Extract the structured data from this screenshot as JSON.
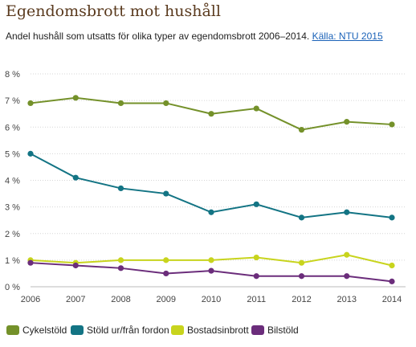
{
  "title": "Egendomsbrott mot hushåll",
  "subtitle": "Andel hushåll som utsatts för olika typer av egendomsbrott 2006–2014.",
  "source_link": "Källa: NTU 2015",
  "chart_data": {
    "type": "line",
    "x": [
      "2006",
      "2007",
      "2008",
      "2009",
      "2010",
      "2011",
      "2012",
      "2013",
      "2014"
    ],
    "yticks": [
      "0 %",
      "1 %",
      "2 %",
      "3 %",
      "4 %",
      "5 %",
      "6 %",
      "7 %",
      "8 %"
    ],
    "ylim": [
      0,
      8
    ],
    "grid": true,
    "legend_position": "bottom",
    "series": [
      {
        "name": "Cykelstöld",
        "color": "#74912a",
        "values": [
          6.9,
          7.1,
          6.9,
          6.9,
          6.5,
          6.7,
          5.9,
          6.2,
          6.1
        ]
      },
      {
        "name": "Stöld ur/från fordon",
        "color": "#137484",
        "values": [
          5.0,
          4.1,
          3.7,
          3.5,
          2.8,
          3.1,
          2.6,
          2.8,
          2.6
        ]
      },
      {
        "name": "Bostadsinbrott",
        "color": "#c8d41d",
        "values": [
          1.0,
          0.9,
          1.0,
          1.0,
          1.0,
          1.1,
          0.9,
          1.2,
          0.8
        ]
      },
      {
        "name": "Bilstöld",
        "color": "#6b2d7b",
        "values": [
          0.9,
          0.8,
          0.7,
          0.5,
          0.6,
          0.4,
          0.4,
          0.4,
          0.2
        ]
      }
    ]
  }
}
